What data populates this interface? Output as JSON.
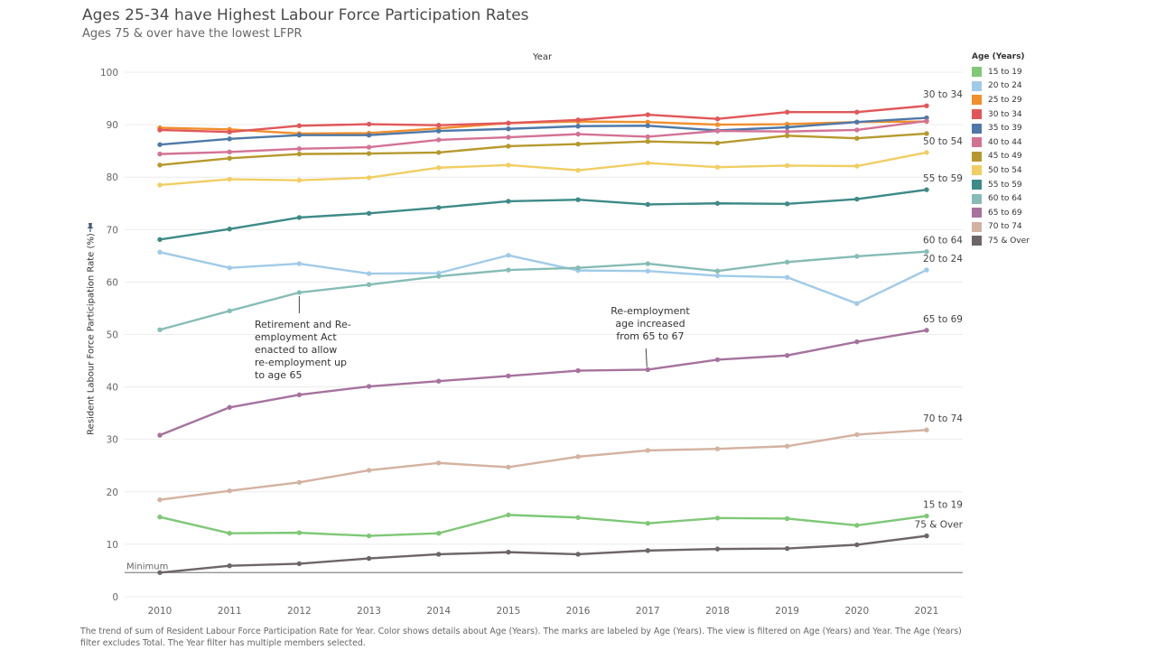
{
  "header": {
    "title": "Ages 25-34 have Highest Labour Force Participation Rates",
    "subtitle": "Ages 75 & over have the lowest LFPR"
  },
  "footer": {
    "caption": "The trend of sum of Resident  Labour  Force  Participation  Rate for Year.  Color shows details about Age (Years).  The marks are labeled by Age (Years). The view is filtered on Age (Years) and Year. The Age (Years) filter excludes Total. The Year filter has multiple members selected."
  },
  "legend": {
    "title": "Age (Years)",
    "position": "right"
  },
  "annotations": {
    "retirement_act": "Retirement and Re-employment Act enacted to allow re-employment up to age 65",
    "reemployment_age": "Re-employment age increased from 65 to 67"
  },
  "chart_data": {
    "type": "line",
    "xlabel": "Year",
    "ylabel": "Resident  Labour  Force  Participation  Rate (%)",
    "ylim": [
      0,
      100
    ],
    "yticks": [
      "0",
      "10",
      "20",
      "30",
      "40",
      "50",
      "60",
      "70",
      "80",
      "90",
      "100"
    ],
    "grid": true,
    "x": [
      "2010",
      "2011",
      "2012",
      "2013",
      "2014",
      "2015",
      "2016",
      "2017",
      "2018",
      "2019",
      "2020",
      "2021"
    ],
    "reference_line": {
      "label": "Minimum",
      "value": 4.6
    },
    "series": [
      {
        "name": "15 to 19",
        "label": "15 to 19",
        "color": "#7ec876",
        "values": [
          15.2,
          12.1,
          12.2,
          11.6,
          12.1,
          15.6,
          15.1,
          14.0,
          15.0,
          14.9,
          13.6,
          15.4
        ]
      },
      {
        "name": "20 to 24",
        "label": "20 to 24",
        "color": "#a0cbe8",
        "values": [
          65.7,
          62.7,
          63.5,
          61.6,
          61.7,
          65.1,
          62.2,
          62.1,
          61.2,
          60.9,
          55.9,
          62.3
        ]
      },
      {
        "name": "25 to 29",
        "label": "",
        "color": "#f28e2b",
        "values": [
          89.4,
          89.1,
          88.3,
          88.4,
          89.3,
          90.3,
          90.6,
          90.5,
          90.0,
          90.1,
          90.5,
          90.6
        ]
      },
      {
        "name": "30 to 34",
        "label": "30 to 34",
        "color": "#e15759",
        "values": [
          89.0,
          88.6,
          89.8,
          90.1,
          89.9,
          90.3,
          90.9,
          91.9,
          91.1,
          92.4,
          92.4,
          93.6
        ]
      },
      {
        "name": "35 to 39",
        "label": "",
        "color": "#4e79a7",
        "values": [
          86.2,
          87.3,
          88.0,
          88.0,
          88.8,
          89.2,
          89.7,
          89.8,
          88.9,
          89.5,
          90.5,
          91.3
        ]
      },
      {
        "name": "40 to 44",
        "label": "",
        "color": "#d37295",
        "values": [
          84.4,
          84.8,
          85.4,
          85.7,
          87.1,
          87.6,
          88.2,
          87.7,
          88.8,
          88.7,
          89.0,
          90.7
        ]
      },
      {
        "name": "45 to 49",
        "label": "",
        "color": "#b6992d",
        "values": [
          82.3,
          83.6,
          84.4,
          84.5,
          84.7,
          85.9,
          86.3,
          86.8,
          86.5,
          87.9,
          87.4,
          88.3
        ]
      },
      {
        "name": "50 to 54",
        "label": "50 to 54",
        "color": "#f1ce63",
        "values": [
          78.5,
          79.6,
          79.4,
          79.9,
          81.8,
          82.3,
          81.3,
          82.7,
          81.9,
          82.2,
          82.1,
          84.7
        ]
      },
      {
        "name": "55 to 59",
        "label": "55 to 59",
        "color": "#3d8a87",
        "values": [
          68.1,
          70.1,
          72.3,
          73.1,
          74.2,
          75.4,
          75.7,
          74.8,
          75.0,
          74.9,
          75.8,
          77.6
        ]
      },
      {
        "name": "60 to 64",
        "label": "60 to 64",
        "color": "#86bcb6",
        "values": [
          50.9,
          54.5,
          58.0,
          59.5,
          61.1,
          62.3,
          62.7,
          63.5,
          62.1,
          63.8,
          64.9,
          65.8
        ]
      },
      {
        "name": "65 to 69",
        "label": "65 to 69",
        "color": "#a6729e",
        "values": [
          30.8,
          36.1,
          38.5,
          40.1,
          41.1,
          42.1,
          43.1,
          43.3,
          45.2,
          46.0,
          48.6,
          50.8
        ]
      },
      {
        "name": "70 to 74",
        "label": "70 to 74",
        "color": "#d4b2a0",
        "values": [
          18.5,
          20.2,
          21.8,
          24.1,
          25.5,
          24.7,
          26.7,
          27.9,
          28.2,
          28.7,
          30.9,
          31.8
        ]
      },
      {
        "name": "75 & Over",
        "label": "75 & Over",
        "color": "#6e6566",
        "values": [
          4.6,
          5.9,
          6.3,
          7.3,
          8.1,
          8.5,
          8.1,
          8.8,
          9.1,
          9.2,
          9.9,
          11.6
        ]
      }
    ]
  }
}
